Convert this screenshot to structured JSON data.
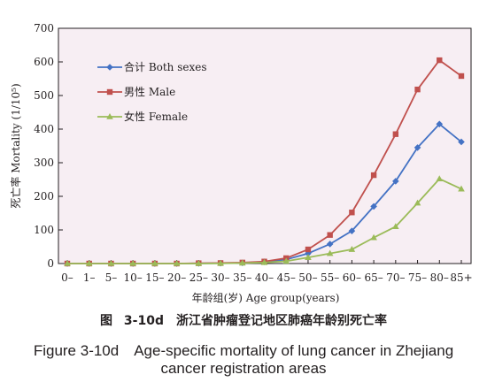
{
  "chart_data": {
    "type": "line",
    "title": "",
    "xlabel": "年龄组(岁) Age group(years)",
    "ylabel": "死亡率 Mortality (1/10⁵)",
    "ylim": [
      0,
      700
    ],
    "yticks": [
      0,
      100,
      200,
      300,
      400,
      500,
      600,
      700
    ],
    "grid": false,
    "legend": "top-left",
    "categories": [
      "0–",
      "1–",
      "5–",
      "10–",
      "15–",
      "20–",
      "25–",
      "30–",
      "35–",
      "40–",
      "45–",
      "50–",
      "55–",
      "60–",
      "65–",
      "70–",
      "75–",
      "80–",
      "85+"
    ],
    "series": [
      {
        "name": "合计 Both sexes",
        "color": "#4472c4",
        "marker": "diamond",
        "values": [
          0,
          0,
          0,
          0,
          0,
          0,
          0.5,
          1,
          2,
          5,
          12,
          30,
          58,
          97,
          170,
          245,
          345,
          415,
          362
        ]
      },
      {
        "name": "男性 Male",
        "color": "#c0504d",
        "marker": "square",
        "values": [
          0,
          0,
          0,
          0,
          0,
          0,
          1,
          1.5,
          3,
          6,
          16,
          42,
          85,
          152,
          263,
          385,
          518,
          605,
          558
        ]
      },
      {
        "name": "女性 Female",
        "color": "#9bbb59",
        "marker": "triangle",
        "values": [
          0,
          0,
          0,
          0,
          0,
          0,
          0,
          0.5,
          1.5,
          3,
          7,
          18,
          30,
          42,
          77,
          110,
          180,
          252,
          222
        ]
      }
    ]
  },
  "caption": {
    "cn": "图 3-10d　浙江省肿瘤登记地区肺癌年龄别死亡率",
    "en_line1": "Figure 3-10d　Age-specific mortality of lung cancer in Zhejiang",
    "en_line2": "cancer registration areas"
  }
}
